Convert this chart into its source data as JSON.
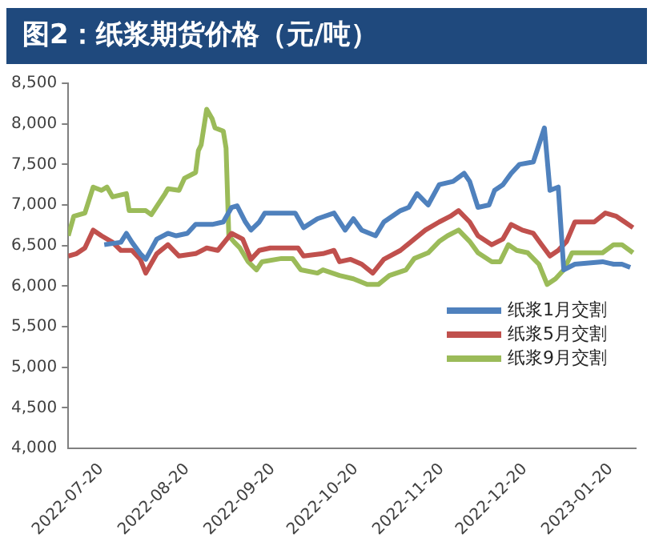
{
  "chart_data": {
    "type": "line",
    "title": "图2：纸浆期货价格（元/吨）",
    "legend": "right",
    "grid": false,
    "marker": "none",
    "line_style": "solid",
    "xlim": [
      "2022-07-20",
      "2023-02-10"
    ],
    "xticks": [
      "2022-07-20",
      "2022-08-20",
      "2022-09-20",
      "2022-10-20",
      "2022-11-20",
      "2022-12-20",
      "2023-01-20"
    ],
    "ylim": [
      4000,
      8500
    ],
    "yticks": [
      {
        "value": 4000,
        "label": "4,000"
      },
      {
        "value": 4500,
        "label": "4,500"
      },
      {
        "value": 5000,
        "label": "5,000"
      },
      {
        "value": 5500,
        "label": "5,500"
      },
      {
        "value": 6000,
        "label": "6,000"
      },
      {
        "value": 6500,
        "label": "6,500"
      },
      {
        "value": 7000,
        "label": "7,000"
      },
      {
        "value": 7500,
        "label": "7,500"
      },
      {
        "value": 8000,
        "label": "8,000"
      },
      {
        "value": 8500,
        "label": "8,500"
      }
    ],
    "series": [
      {
        "name": "纸浆1月交割",
        "color": "#4f81bd",
        "x": [
          "2022-08-02",
          "2022-08-08",
          "2022-08-10",
          "2022-08-12",
          "2022-08-15",
          "2022-08-17",
          "2022-08-21",
          "2022-08-25",
          "2022-08-28",
          "2022-09-01",
          "2022-09-04",
          "2022-09-10",
          "2022-09-14",
          "2022-09-17",
          "2022-09-19",
          "2022-09-22",
          "2022-09-24",
          "2022-09-27",
          "2022-09-29",
          "2022-10-10",
          "2022-10-13",
          "2022-10-18",
          "2022-10-24",
          "2022-10-28",
          "2022-10-31",
          "2022-11-03",
          "2022-11-08",
          "2022-11-11",
          "2022-11-17",
          "2022-11-20",
          "2022-11-23",
          "2022-11-27",
          "2022-12-01",
          "2022-12-06",
          "2022-12-10",
          "2022-12-12",
          "2022-12-15",
          "2022-12-19",
          "2022-12-21",
          "2022-12-24",
          "2022-12-27",
          "2022-12-30",
          "2023-01-04",
          "2023-01-08",
          "2023-01-10",
          "2023-01-13",
          "2023-01-15",
          "2023-01-19",
          "2023-01-29",
          "2023-02-02",
          "2023-02-05",
          "2023-02-08"
        ],
        "values": [
          6510,
          6540,
          6650,
          6540,
          6400,
          6330,
          6580,
          6650,
          6620,
          6650,
          6760,
          6760,
          6790,
          6970,
          6990,
          6790,
          6690,
          6790,
          6900,
          6900,
          6720,
          6830,
          6900,
          6690,
          6830,
          6690,
          6620,
          6790,
          6930,
          6970,
          7140,
          7000,
          7250,
          7290,
          7390,
          7290,
          6970,
          7000,
          7180,
          7250,
          7390,
          7500,
          7530,
          7950,
          7180,
          7220,
          6200,
          6270,
          6300,
          6270,
          6270,
          6230
        ]
      },
      {
        "name": "纸浆5月交割",
        "color": "#c0504d",
        "x": [
          "2022-07-20",
          "2022-07-23",
          "2022-07-26",
          "2022-07-29",
          "2022-08-01",
          "2022-08-05",
          "2022-08-08",
          "2022-08-12",
          "2022-08-15",
          "2022-08-17",
          "2022-08-21",
          "2022-08-25",
          "2022-08-29",
          "2022-09-04",
          "2022-09-08",
          "2022-09-12",
          "2022-09-17",
          "2022-09-21",
          "2022-09-24",
          "2022-09-27",
          "2022-10-01",
          "2022-10-11",
          "2022-10-13",
          "2022-10-20",
          "2022-10-24",
          "2022-10-26",
          "2022-10-30",
          "2022-11-03",
          "2022-11-07",
          "2022-11-11",
          "2022-11-17",
          "2022-11-22",
          "2022-11-26",
          "2022-12-01",
          "2022-12-05",
          "2022-12-08",
          "2022-12-12",
          "2022-12-15",
          "2022-12-20",
          "2022-12-24",
          "2022-12-27",
          "2022-12-31",
          "2023-01-04",
          "2023-01-07",
          "2023-01-10",
          "2023-01-13",
          "2023-01-16",
          "2023-01-19",
          "2023-01-26",
          "2023-01-30",
          "2023-02-03",
          "2023-02-06",
          "2023-02-09"
        ],
        "values": [
          6370,
          6400,
          6470,
          6690,
          6620,
          6540,
          6440,
          6440,
          6330,
          6160,
          6400,
          6510,
          6370,
          6400,
          6470,
          6440,
          6650,
          6580,
          6330,
          6440,
          6470,
          6470,
          6370,
          6400,
          6440,
          6300,
          6330,
          6270,
          6160,
          6330,
          6440,
          6580,
          6690,
          6790,
          6860,
          6930,
          6790,
          6620,
          6510,
          6580,
          6760,
          6690,
          6650,
          6510,
          6370,
          6440,
          6550,
          6790,
          6790,
          6900,
          6860,
          6790,
          6720
        ]
      },
      {
        "name": "纸浆9月交割",
        "color": "#9bbb59",
        "x": [
          "2022-07-20",
          "2022-07-22",
          "2022-07-26",
          "2022-07-29",
          "2022-08-01",
          "2022-08-03",
          "2022-08-05",
          "2022-08-10",
          "2022-08-11",
          "2022-08-17",
          "2022-08-19",
          "2022-08-24",
          "2022-08-25",
          "2022-08-29",
          "2022-08-31",
          "2022-09-04",
          "2022-09-05",
          "2022-09-06",
          "2022-09-08",
          "2022-09-10",
          "2022-09-11",
          "2022-09-14",
          "2022-09-15",
          "2022-09-16",
          "2022-09-18",
          "2022-09-20",
          "2022-09-23",
          "2022-09-26",
          "2022-09-28",
          "2022-10-05",
          "2022-10-09",
          "2022-10-12",
          "2022-10-18",
          "2022-10-20",
          "2022-10-26",
          "2022-10-31",
          "2022-11-05",
          "2022-11-09",
          "2022-11-13",
          "2022-11-19",
          "2022-11-22",
          "2022-11-27",
          "2022-12-01",
          "2022-12-04",
          "2022-12-08",
          "2022-12-12",
          "2022-12-15",
          "2022-12-20",
          "2022-12-23",
          "2022-12-26",
          "2022-12-29",
          "2023-01-02",
          "2023-01-06",
          "2023-01-09",
          "2023-01-12",
          "2023-01-15",
          "2023-01-18",
          "2023-01-29",
          "2023-02-02",
          "2023-02-05",
          "2023-02-09"
        ],
        "values": [
          6620,
          6860,
          6900,
          7220,
          7180,
          7220,
          7100,
          7140,
          6930,
          6930,
          6880,
          7140,
          7200,
          7180,
          7330,
          7400,
          7670,
          7740,
          8180,
          8060,
          7950,
          7910,
          7700,
          6620,
          6540,
          6470,
          6300,
          6200,
          6300,
          6340,
          6340,
          6200,
          6160,
          6200,
          6130,
          6090,
          6020,
          6020,
          6130,
          6200,
          6340,
          6410,
          6550,
          6620,
          6690,
          6550,
          6410,
          6300,
          6300,
          6510,
          6440,
          6410,
          6270,
          6020,
          6090,
          6200,
          6410,
          6410,
          6510,
          6510,
          6410
        ]
      }
    ]
  }
}
